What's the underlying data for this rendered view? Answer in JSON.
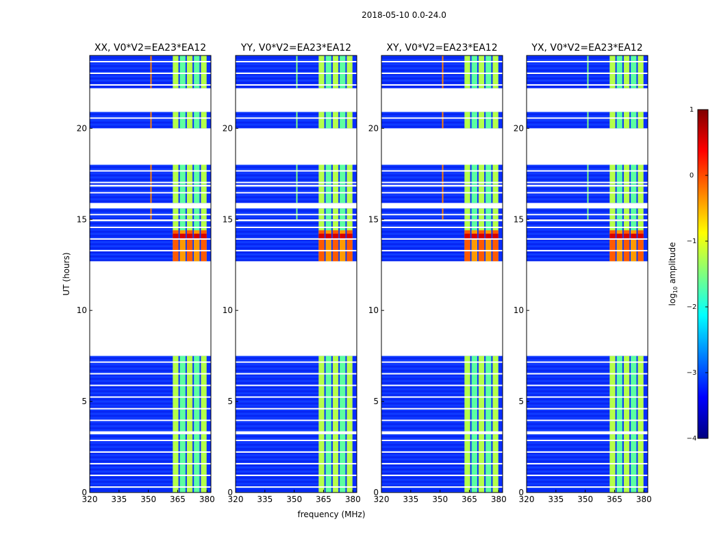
{
  "chart_data": {
    "type": "heatmap",
    "suptitle": "2018-05-10 0.0-24.0",
    "xlabel": "frequency (MHz)",
    "ylabel": "UT (hours)",
    "xlim": [
      320,
      382
    ],
    "ylim": [
      0,
      24
    ],
    "xticks": [
      320,
      335,
      350,
      365,
      380
    ],
    "yticks": [
      0,
      5,
      10,
      15,
      20
    ],
    "panels": [
      {
        "title": "XX, V0*V2=EA23*EA12"
      },
      {
        "title": "YY, V0*V2=EA23*EA12"
      },
      {
        "title": "XY, V0*V2=EA23*EA12"
      },
      {
        "title": "YX, V0*V2=EA23*EA12"
      }
    ],
    "colorbar": {
      "label": "log",
      "label_subscript": "10",
      "label_suffix": " amplitude",
      "range": [
        -4,
        1
      ],
      "ticks": [
        "1",
        "0",
        "−1",
        "−2",
        "−3",
        "−4"
      ],
      "colors": [
        "#7f0000",
        "#ff0000",
        "#ff7f00",
        "#ffff00",
        "#7fff7f",
        "#00ffff",
        "#007fff",
        "#0000ff",
        "#00007f"
      ]
    },
    "data_blocks_ut": [
      [
        0.0,
        3.2
      ],
      [
        3.3,
        7.5
      ],
      [
        12.7,
        14.9
      ],
      [
        15.0,
        15.6
      ],
      [
        15.9,
        16.8
      ],
      [
        16.9,
        18.0
      ],
      [
        20.0,
        20.9
      ],
      [
        22.2,
        24.0
      ]
    ],
    "rfi_band_mhz": [
      362.5,
      380.5
    ],
    "strong_interference_ut": [
      12.7,
      14.4
    ],
    "narrow_line_mhz": 351
  }
}
